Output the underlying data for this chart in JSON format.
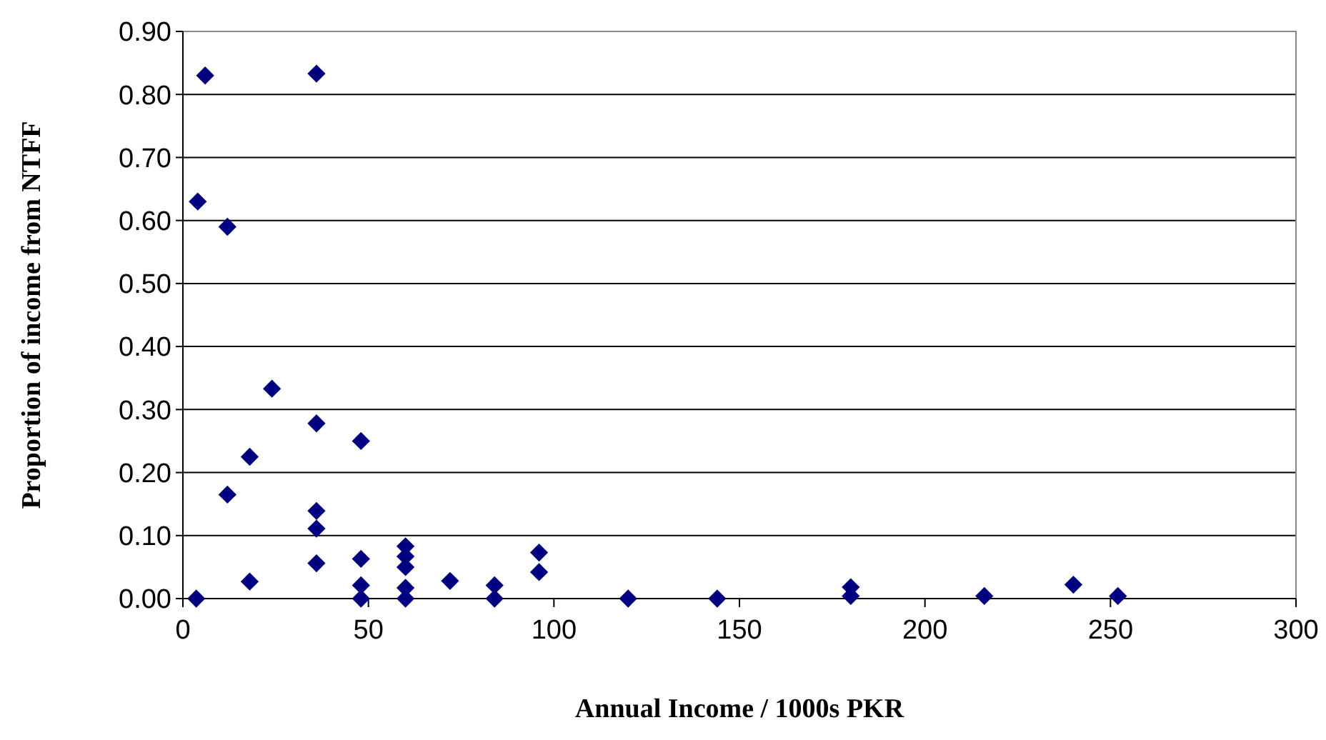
{
  "chart_data": {
    "type": "scatter",
    "xlabel": "Annual Income / 1000s PKR",
    "ylabel": "Proportion of income from NTFF",
    "x": [
      3.6,
      4,
      6,
      12,
      12,
      18,
      18,
      24,
      36,
      36,
      36,
      36,
      36,
      48,
      48,
      48,
      48,
      60,
      60,
      60,
      60,
      60,
      72,
      84,
      84,
      96,
      96,
      120,
      144,
      180,
      180,
      216,
      240,
      252
    ],
    "series": [
      {
        "color": "#000080",
        "values": [
          0,
          0.63,
          0.83,
          0.59,
          0.165,
          0.225,
          0.027,
          0.333,
          0.833,
          0.278,
          0.139,
          0.111,
          0.056,
          0.25,
          0.063,
          0.021,
          0,
          0.083,
          0.067,
          0.05,
          0.017,
          0,
          0.028,
          0.021,
          0,
          0.073,
          0.042,
          0,
          0,
          0.018,
          0.004,
          0.004,
          0.022,
          0.004
        ]
      }
    ],
    "xlim": [
      0,
      300
    ],
    "xticks": [
      0,
      50,
      100,
      150,
      200,
      250,
      300
    ],
    "ylim": [
      0,
      0.9
    ],
    "yticks": [
      {
        "value": 0,
        "label": "0.00"
      },
      {
        "value": 0.1,
        "label": "0.10"
      },
      {
        "value": 0.2,
        "label": "0.20"
      },
      {
        "value": 0.3,
        "label": "0.30"
      },
      {
        "value": 0.4,
        "label": "0.40"
      },
      {
        "value": 0.5,
        "label": "0.50"
      },
      {
        "value": 0.6,
        "label": "0.60"
      },
      {
        "value": 0.7,
        "label": "0.70"
      },
      {
        "value": 0.8,
        "label": "0.80"
      },
      {
        "value": 0.9,
        "label": "0.90"
      }
    ],
    "grid": "y",
    "marker": "diamond"
  }
}
